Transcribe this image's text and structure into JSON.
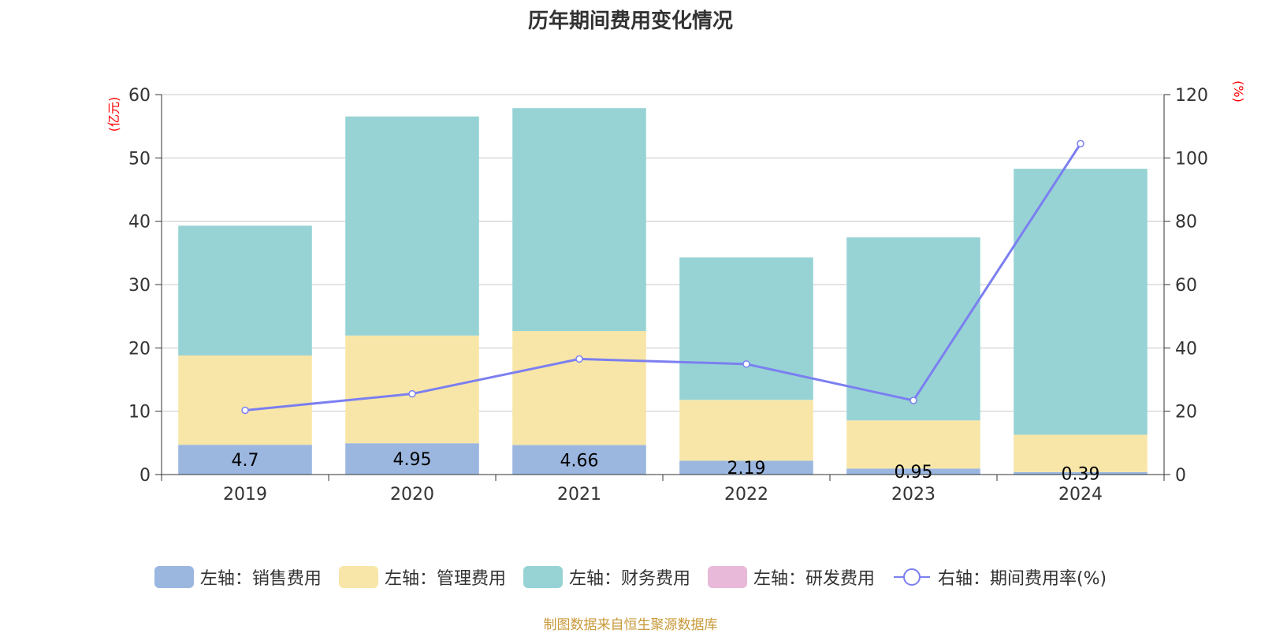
{
  "chart_data": {
    "title": "历年期间费用变化情况",
    "type": "bar",
    "stacked": true,
    "categories": [
      "2019",
      "2020",
      "2021",
      "2022",
      "2023",
      "2024"
    ],
    "series": [
      {
        "name": "左轴：销售费用",
        "axis": "left",
        "type": "bar",
        "color": "#9bb7e0",
        "values": [
          4.7,
          4.95,
          4.66,
          2.19,
          0.95,
          0.39
        ],
        "labels": [
          "4.7",
          "4.95",
          "4.66",
          "2.19",
          "0.95",
          "0.39"
        ]
      },
      {
        "name": "左轴：管理费用",
        "axis": "left",
        "type": "bar",
        "color": "#f8e6a8",
        "values": [
          14.1,
          17.0,
          18.0,
          9.6,
          7.6,
          5.9
        ]
      },
      {
        "name": "左轴：财务费用",
        "axis": "left",
        "type": "bar",
        "color": "#97d3d5",
        "values": [
          20.5,
          34.6,
          35.2,
          22.5,
          28.9,
          42.0
        ]
      },
      {
        "name": "左轴：研发费用",
        "axis": "left",
        "type": "bar",
        "color": "#e8b9d9",
        "values": [
          0,
          0,
          0,
          0,
          0,
          0
        ]
      },
      {
        "name": "右轴：期间费用率(%)",
        "axis": "right",
        "type": "line",
        "color": "#7b7ff0",
        "values": [
          20.3,
          25.5,
          36.5,
          34.9,
          23.4,
          104.5
        ]
      }
    ],
    "y_left": {
      "unit": "(亿元)",
      "min": 0,
      "max": 60,
      "ticks": [
        "0",
        "10",
        "20",
        "30",
        "40",
        "50",
        "60"
      ]
    },
    "y_right": {
      "unit": "(%)",
      "min": 0,
      "max": 120,
      "ticks": [
        "0",
        "20",
        "40",
        "60",
        "80",
        "100",
        "120"
      ]
    },
    "grid": true,
    "legend_position": "bottom"
  },
  "source": "制图数据来自恒生聚源数据库"
}
